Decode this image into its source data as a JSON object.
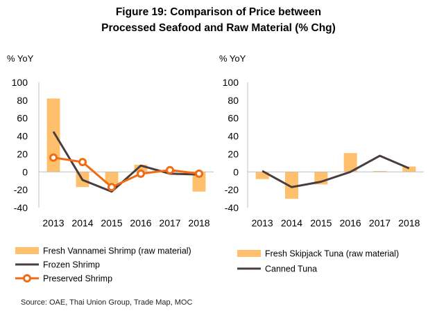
{
  "figure": {
    "title_line1": "Figure 19: Comparison of Price between",
    "title_line2": "Processed Seafood and Raw Material (% Chg)",
    "source": "Source: OAE, Thai Union Group, Trade Map, MOC"
  },
  "colors": {
    "bar": "#FFC06E",
    "dark_line": "#4A3D3D",
    "orange_line": "#F26A12",
    "axis": "#BFBFBF"
  },
  "chart_data": [
    {
      "type": "bar",
      "ylabel": "% YoY",
      "categories": [
        "2013",
        "2014",
        "2015",
        "2016",
        "2017",
        "2018"
      ],
      "yticks": [
        "100",
        "80",
        "60",
        "40",
        "20",
        "0",
        "-20",
        "-40"
      ],
      "ylim": [
        -40,
        100
      ],
      "grid": false,
      "legend_position": "bottom",
      "series": [
        {
          "name": "Fresh Vannamei Shrimp (raw material)",
          "kind": "bar",
          "values": [
            82,
            -17,
            -13,
            8,
            1,
            -22
          ]
        },
        {
          "name": "Frozen Shrimp",
          "kind": "line",
          "values": [
            45,
            -9,
            -22,
            7,
            -2,
            -3
          ]
        },
        {
          "name": "Preserved Shrimp",
          "kind": "line-marker",
          "values": [
            16,
            11,
            -17,
            -2,
            2,
            -2
          ]
        }
      ]
    },
    {
      "type": "bar",
      "ylabel": "% YoY",
      "categories": [
        "2013",
        "2014",
        "2015",
        "2016",
        "2017",
        "2018"
      ],
      "yticks": [
        "100",
        "80",
        "60",
        "40",
        "20",
        "0",
        "-20",
        "-40"
      ],
      "ylim": [
        -40,
        100
      ],
      "grid": false,
      "legend_position": "bottom",
      "series": [
        {
          "name": "Fresh Skipjack Tuna (raw material)",
          "kind": "bar",
          "values": [
            -8,
            -30,
            -14,
            21,
            1,
            6
          ]
        },
        {
          "name": "Canned Tuna",
          "kind": "line",
          "values": [
            1,
            -17,
            -11,
            0,
            18,
            4
          ]
        }
      ]
    }
  ]
}
